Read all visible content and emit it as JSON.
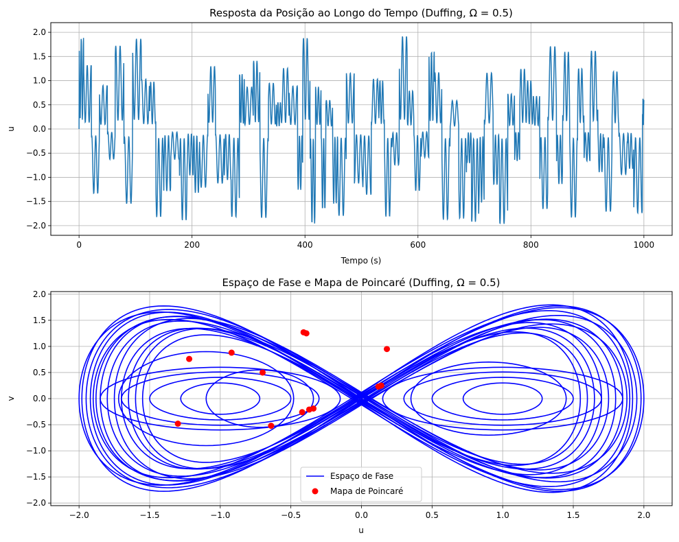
{
  "chart_data": [
    {
      "type": "line",
      "title": "Resposta da Posição ao Longo do Tempo (Duffing, Ω = 0.5)",
      "xlabel": "Tempo (s)",
      "ylabel": "u",
      "xlim": [
        -50,
        1050
      ],
      "ylim": [
        -2.2,
        2.2
      ],
      "xticks": [
        0,
        200,
        400,
        600,
        800,
        1000
      ],
      "xtick_labels": [
        "0",
        "200",
        "400",
        "600",
        "800",
        "1000"
      ],
      "yticks": [
        -2.0,
        -1.5,
        -1.0,
        -0.5,
        0.0,
        0.5,
        1.0,
        1.5,
        2.0
      ],
      "ytick_labels": [
        "−2.0",
        "−1.5",
        "−1.0",
        "−0.5",
        "0.0",
        "0.5",
        "1.0",
        "1.5",
        "2.0"
      ],
      "grid": true,
      "series": [
        {
          "color": "#1f77b4",
          "x": [
            0,
            1000
          ],
          "y_range": [
            -2.0,
            2.0
          ],
          "start_value": 0.0,
          "end_value": 0.6
        }
      ]
    },
    {
      "type": "scatter",
      "title": "Espaço de Fase e Mapa de Poincaré (Duffing, Ω = 0.5)",
      "xlabel": "u",
      "ylabel": "v",
      "xlim": [
        -2.2,
        2.2
      ],
      "ylim": [
        -2.05,
        2.05
      ],
      "xticks": [
        -2.0,
        -1.5,
        -1.0,
        -0.5,
        0.0,
        0.5,
        1.0,
        1.5,
        2.0
      ],
      "xtick_labels": [
        "−2.0",
        "−1.5",
        "−1.0",
        "−0.5",
        "0.0",
        "0.5",
        "1.0",
        "1.5",
        "2.0"
      ],
      "yticks": [
        -2.0,
        -1.5,
        -1.0,
        -0.5,
        0.0,
        0.5,
        1.0,
        1.5,
        2.0
      ],
      "ytick_labels": [
        "−2.0",
        "−1.5",
        "−1.0",
        "−0.5",
        "0.0",
        "0.5",
        "1.0",
        "1.5",
        "2.0"
      ],
      "grid": true,
      "legend": {
        "placement": "lower center",
        "entries": [
          {
            "label": "Espaço de Fase",
            "color": "#0000ff",
            "kind": "line"
          },
          {
            "label": "Mapa de Poincaré",
            "color": "#ff0000",
            "kind": "marker"
          }
        ]
      },
      "series": [
        {
          "name": "Espaço de Fase",
          "color": "#0000ff",
          "u_range": [
            -2.0,
            2.0
          ],
          "v_range": [
            -1.8,
            1.8
          ]
        },
        {
          "name": "Mapa de Poincaré",
          "color": "#ff0000",
          "points": [
            [
              -0.41,
              1.27
            ],
            [
              -0.39,
              1.25
            ],
            [
              0.18,
              0.95
            ],
            [
              -0.92,
              0.88
            ],
            [
              -1.22,
              0.76
            ],
            [
              -0.7,
              0.5
            ],
            [
              0.12,
              0.23
            ],
            [
              0.14,
              0.25
            ],
            [
              -0.34,
              -0.19
            ],
            [
              -0.37,
              -0.21
            ],
            [
              -0.42,
              -0.26
            ],
            [
              -0.64,
              -0.52
            ],
            [
              -1.3,
              -0.48
            ]
          ]
        }
      ]
    }
  ]
}
